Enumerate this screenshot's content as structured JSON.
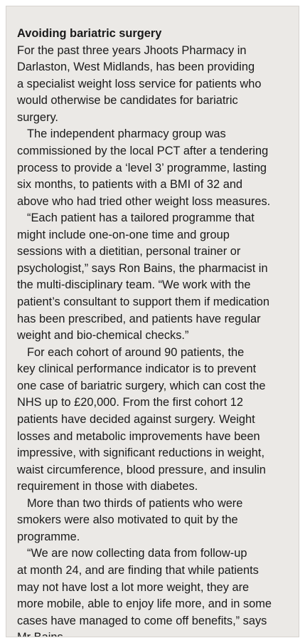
{
  "sidebar": {
    "title": "Avoiding bariatric surgery",
    "paragraphs": [
      {
        "lines": [
          "For the past three years Jhoots Pharmacy in",
          "Darlaston, West Midlands, has been providing",
          "a specialist weight loss service for patients who",
          "would otherwise be candidates for bariatric",
          "surgery."
        ]
      },
      {
        "lines": [
          "The independent pharmacy group was",
          "commissioned by the local PCT after a tendering",
          "process to provide a ‘level 3’ programme, lasting",
          "six months, to patients with a BMI of 32 and",
          "above who had tried other weight loss measures."
        ]
      },
      {
        "lines": [
          "“Each patient has a tailored programme that",
          "might include one-on-one time and group",
          "sessions with a dietitian, personal trainer or",
          "psychologist,” says Ron Bains, the pharmacist in",
          "the multi-disciplinary team. “We work with the",
          "patient’s consultant to support them if medication",
          "has been prescribed, and patients have regular",
          "weight and bio-chemical checks.”"
        ]
      },
      {
        "lines": [
          "For each cohort of around 90 patients, the",
          "key clinical performance indicator is to prevent",
          "one case of bariatric surgery, which can cost the",
          "NHS up to £20,000. From the first cohort 12",
          "patients have decided against surgery. Weight",
          "losses and metabolic improvements have been",
          "impressive, with significant reductions in weight,",
          "waist circumference, blood pressure, and insulin",
          "requirement in those with diabetes."
        ]
      },
      {
        "lines": [
          "More than two thirds of patients who were",
          "smokers were also motivated to quit by the",
          "programme."
        ]
      },
      {
        "lines": [
          "“We are now collecting data from follow-up",
          "at month 24, and are finding that while patients",
          "may not have lost a lot more weight, they are",
          "more mobile, able to enjoy life more, and in some",
          "cases have managed to come off benefits,” says",
          "Mr Bains."
        ]
      }
    ]
  }
}
